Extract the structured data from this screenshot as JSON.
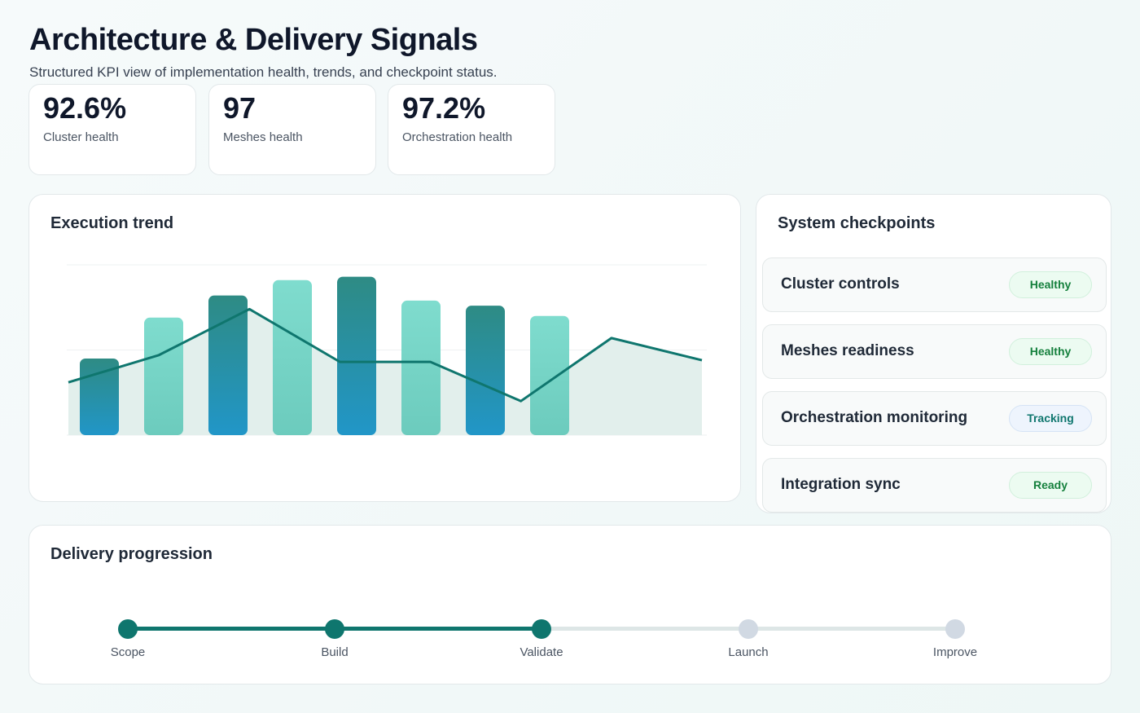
{
  "header": {
    "title": "Architecture & Delivery Signals",
    "subtitle": "Structured KPI view of implementation health, trends, and checkpoint status."
  },
  "kpis": [
    {
      "value": "92.6%",
      "label": "Cluster health"
    },
    {
      "value": "97",
      "label": "Meshes health"
    },
    {
      "value": "97.2%",
      "label": "Orchestration health"
    }
  ],
  "chart_data": {
    "type": "bar",
    "title": "Execution trend",
    "grid": true,
    "ylim": [
      0,
      100
    ],
    "bars": {
      "values": [
        45,
        69,
        82,
        91,
        93,
        79,
        76,
        70
      ],
      "colors": [
        "dark",
        "light",
        "dark",
        "light",
        "dark",
        "light",
        "dark",
        "light"
      ]
    },
    "line": {
      "values": [
        31,
        47,
        74,
        43,
        43,
        20,
        57,
        44
      ]
    },
    "colors": {
      "dark_top": "#2e8b84",
      "dark_bottom": "#2196c8",
      "light_top": "#7fdcce",
      "light_bottom": "#6ccbbd",
      "line": "#0f766e",
      "area": "#e2efec"
    }
  },
  "checkpoints": {
    "title": "System checkpoints",
    "items": [
      {
        "name": "Cluster controls",
        "status": "Healthy",
        "kind": "ok"
      },
      {
        "name": "Meshes readiness",
        "status": "Healthy",
        "kind": "ok"
      },
      {
        "name": "Orchestration monitoring",
        "status": "Tracking",
        "kind": "track"
      },
      {
        "name": "Integration sync",
        "status": "Ready",
        "kind": "ok"
      }
    ]
  },
  "delivery": {
    "title": "Delivery progression",
    "completed": 3,
    "steps": [
      "Scope",
      "Build",
      "Validate",
      "Launch",
      "Improve"
    ],
    "colors": {
      "done": "#0f766e",
      "todo": "#d1d9e3"
    }
  }
}
